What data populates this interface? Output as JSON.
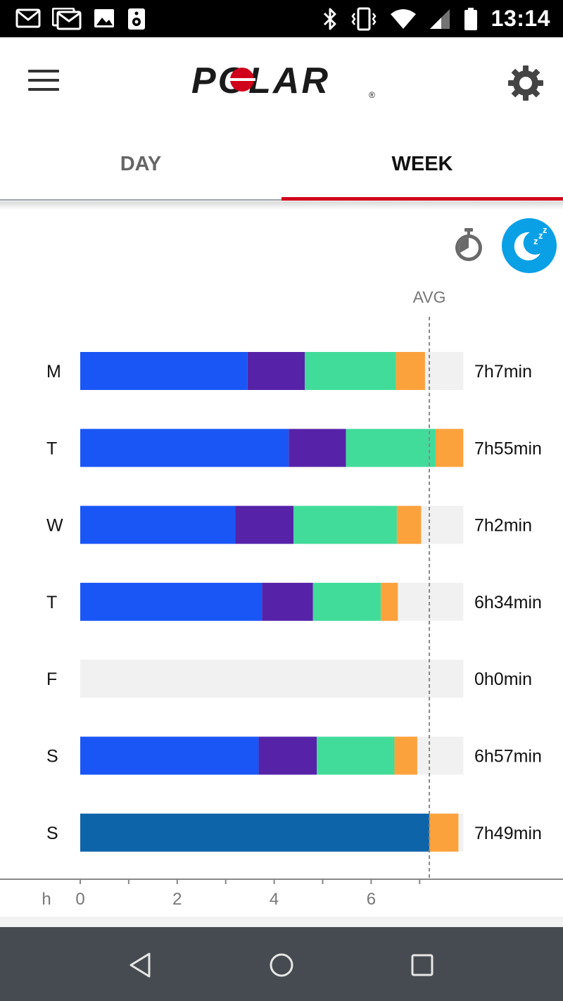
{
  "status_bar": {
    "time": "13:14",
    "left_icons": [
      "gmail-icon",
      "gmail-icon",
      "image-icon",
      "speaker-icon"
    ],
    "right_icons": [
      "bluetooth-icon",
      "vibrate-icon",
      "wifi-icon",
      "signal-icon",
      "battery-icon"
    ]
  },
  "header": {
    "logo_text": "POLAR",
    "logo_mark": "®",
    "colors": {
      "logo": "#1a1a1a",
      "logo_dot": "#d0021b"
    }
  },
  "tabs": [
    {
      "label": "DAY",
      "active": false
    },
    {
      "label": "WEEK",
      "active": true
    }
  ],
  "toggles": {
    "timer_icon": "stopwatch-icon",
    "sleep_icon": "sleep-moon-icon",
    "active": "sleep"
  },
  "chart_data": {
    "type": "bar",
    "orientation": "horizontal",
    "stacked": true,
    "avg_label": "AVG",
    "avg_value": 7.2,
    "x_unit_label": "h",
    "xlim": [
      0,
      7.9
    ],
    "x_ticks": [
      0,
      2,
      4,
      6
    ],
    "x_minor_ticks": [
      1,
      3,
      5,
      7
    ],
    "categories": [
      "M",
      "T",
      "W",
      "T",
      "F",
      "S",
      "S"
    ],
    "totals": [
      "7h7min",
      "7h55min",
      "7h2min",
      "6h34min",
      "0h0min",
      "6h57min",
      "7h49min"
    ],
    "colors": {
      "track": "#f1f1f1",
      "deep": "#1a56f5",
      "purple": "#5623a8",
      "green": "#42dc9a",
      "orange": "#fca23d",
      "dark_blue": "#0d64a8",
      "avg_line": "#888888"
    },
    "rows": [
      {
        "segments": [
          {
            "color": "deep",
            "value": 3.45
          },
          {
            "color": "purple",
            "value": 1.18
          },
          {
            "color": "green",
            "value": 1.88
          },
          {
            "color": "orange",
            "value": 0.6
          }
        ]
      },
      {
        "segments": [
          {
            "color": "deep",
            "value": 4.3
          },
          {
            "color": "purple",
            "value": 1.18
          },
          {
            "color": "green",
            "value": 1.85
          },
          {
            "color": "orange",
            "value": 0.57
          }
        ]
      },
      {
        "segments": [
          {
            "color": "deep",
            "value": 3.2
          },
          {
            "color": "purple",
            "value": 1.2
          },
          {
            "color": "green",
            "value": 2.13
          },
          {
            "color": "orange",
            "value": 0.5
          }
        ]
      },
      {
        "segments": [
          {
            "color": "deep",
            "value": 3.75
          },
          {
            "color": "purple",
            "value": 1.05
          },
          {
            "color": "green",
            "value": 1.4
          },
          {
            "color": "orange",
            "value": 0.35
          }
        ]
      },
      {
        "segments": []
      },
      {
        "segments": [
          {
            "color": "deep",
            "value": 3.68
          },
          {
            "color": "purple",
            "value": 1.2
          },
          {
            "color": "green",
            "value": 1.6
          },
          {
            "color": "orange",
            "value": 0.47
          }
        ]
      },
      {
        "segments": [
          {
            "color": "dark_blue",
            "value": 7.2
          },
          {
            "color": "orange",
            "value": 0.6
          }
        ]
      }
    ]
  },
  "nav_bar": {
    "buttons": [
      "back-icon",
      "home-icon",
      "recents-icon"
    ]
  }
}
